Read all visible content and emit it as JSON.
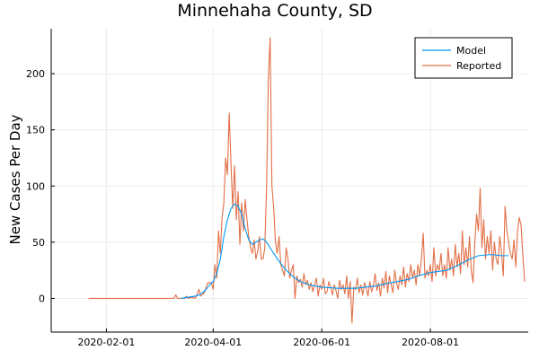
{
  "chart_data": {
    "type": "line",
    "title": "Minnehaha County, SD",
    "xlabel": "",
    "ylabel": "New Cases Per Day",
    "x_type": "date",
    "x_range": [
      "2020-01-01",
      "2020-09-25"
    ],
    "x_tick_labels": [
      "2020-02-01",
      "2020-04-01",
      "2020-06-01",
      "2020-08-01"
    ],
    "ylim": [
      -30,
      240
    ],
    "y_ticks": [
      0,
      50,
      100,
      150,
      200
    ],
    "grid": true,
    "legend_position": "top-right",
    "colors": {
      "Model": "#009AFA",
      "Reported": "#E26F46",
      "axis": "#000000",
      "grid": "#EBEBEB"
    },
    "series": [
      {
        "name": "Model",
        "points": [
          [
            "2020-03-14",
            0
          ],
          [
            "2020-03-18",
            1
          ],
          [
            "2020-03-22",
            2
          ],
          [
            "2020-03-24",
            3
          ],
          [
            "2020-03-26",
            5
          ],
          [
            "2020-03-28",
            8
          ],
          [
            "2020-03-30",
            12
          ],
          [
            "2020-04-01",
            15
          ],
          [
            "2020-04-03",
            22
          ],
          [
            "2020-04-05",
            35
          ],
          [
            "2020-04-07",
            55
          ],
          [
            "2020-04-09",
            70
          ],
          [
            "2020-04-11",
            80
          ],
          [
            "2020-04-13",
            84
          ],
          [
            "2020-04-15",
            82
          ],
          [
            "2020-04-17",
            75
          ],
          [
            "2020-04-19",
            62
          ],
          [
            "2020-04-21",
            52
          ],
          [
            "2020-04-23",
            48
          ],
          [
            "2020-04-25",
            50
          ],
          [
            "2020-04-27",
            52
          ],
          [
            "2020-04-29",
            53
          ],
          [
            "2020-05-01",
            50
          ],
          [
            "2020-05-03",
            45
          ],
          [
            "2020-05-05",
            40
          ],
          [
            "2020-05-08",
            33
          ],
          [
            "2020-05-11",
            27
          ],
          [
            "2020-05-14",
            22
          ],
          [
            "2020-05-17",
            18
          ],
          [
            "2020-05-20",
            15
          ],
          [
            "2020-05-25",
            12
          ],
          [
            "2020-06-01",
            10
          ],
          [
            "2020-06-10",
            9
          ],
          [
            "2020-06-20",
            9
          ],
          [
            "2020-07-01",
            11
          ],
          [
            "2020-07-10",
            14
          ],
          [
            "2020-07-20",
            17
          ],
          [
            "2020-07-25",
            20
          ],
          [
            "2020-08-01",
            23
          ],
          [
            "2020-08-10",
            25
          ],
          [
            "2020-08-16",
            29
          ],
          [
            "2020-08-22",
            34
          ],
          [
            "2020-08-28",
            38
          ],
          [
            "2020-09-04",
            39
          ],
          [
            "2020-09-10",
            38
          ],
          [
            "2020-09-14",
            38
          ]
        ]
      },
      {
        "name": "Reported",
        "points": [
          [
            "2020-01-22",
            0
          ],
          [
            "2020-03-10",
            0
          ],
          [
            "2020-03-11",
            3
          ],
          [
            "2020-03-12",
            0
          ],
          [
            "2020-03-16",
            0
          ],
          [
            "2020-03-17",
            2
          ],
          [
            "2020-03-18",
            0
          ],
          [
            "2020-03-20",
            1
          ],
          [
            "2020-03-22",
            0
          ],
          [
            "2020-03-24",
            8
          ],
          [
            "2020-03-25",
            2
          ],
          [
            "2020-03-27",
            5
          ],
          [
            "2020-03-29",
            14
          ],
          [
            "2020-03-31",
            14
          ],
          [
            "2020-04-01",
            8
          ],
          [
            "2020-04-02",
            30
          ],
          [
            "2020-04-03",
            18
          ],
          [
            "2020-04-04",
            60
          ],
          [
            "2020-04-05",
            40
          ],
          [
            "2020-04-06",
            72
          ],
          [
            "2020-04-07",
            85
          ],
          [
            "2020-04-08",
            125
          ],
          [
            "2020-04-09",
            110
          ],
          [
            "2020-04-10",
            165
          ],
          [
            "2020-04-11",
            120
          ],
          [
            "2020-04-12",
            80
          ],
          [
            "2020-04-13",
            118
          ],
          [
            "2020-04-14",
            70
          ],
          [
            "2020-04-15",
            95
          ],
          [
            "2020-04-16",
            48
          ],
          [
            "2020-04-17",
            85
          ],
          [
            "2020-04-18",
            60
          ],
          [
            "2020-04-19",
            88
          ],
          [
            "2020-04-20",
            70
          ],
          [
            "2020-04-21",
            55
          ],
          [
            "2020-04-22",
            45
          ],
          [
            "2020-04-23",
            40
          ],
          [
            "2020-04-24",
            52
          ],
          [
            "2020-04-25",
            35
          ],
          [
            "2020-04-26",
            42
          ],
          [
            "2020-04-27",
            55
          ],
          [
            "2020-04-28",
            35
          ],
          [
            "2020-04-29",
            35
          ],
          [
            "2020-04-30",
            45
          ],
          [
            "2020-05-01",
            100
          ],
          [
            "2020-05-02",
            195
          ],
          [
            "2020-05-03",
            232
          ],
          [
            "2020-05-04",
            100
          ],
          [
            "2020-05-05",
            80
          ],
          [
            "2020-05-06",
            50
          ],
          [
            "2020-05-07",
            40
          ],
          [
            "2020-05-08",
            55
          ],
          [
            "2020-05-09",
            30
          ],
          [
            "2020-05-10",
            25
          ],
          [
            "2020-05-11",
            20
          ],
          [
            "2020-05-12",
            45
          ],
          [
            "2020-05-13",
            35
          ],
          [
            "2020-05-14",
            18
          ],
          [
            "2020-05-15",
            25
          ],
          [
            "2020-05-16",
            30
          ],
          [
            "2020-05-17",
            0
          ],
          [
            "2020-05-18",
            20
          ],
          [
            "2020-05-19",
            14
          ],
          [
            "2020-05-20",
            17
          ],
          [
            "2020-05-21",
            10
          ],
          [
            "2020-05-22",
            22
          ],
          [
            "2020-05-23",
            12
          ],
          [
            "2020-05-24",
            16
          ],
          [
            "2020-05-25",
            8
          ],
          [
            "2020-05-26",
            14
          ],
          [
            "2020-05-27",
            6
          ],
          [
            "2020-05-28",
            12
          ],
          [
            "2020-05-29",
            18
          ],
          [
            "2020-05-30",
            2
          ],
          [
            "2020-05-31",
            12
          ],
          [
            "2020-06-01",
            8
          ],
          [
            "2020-06-02",
            18
          ],
          [
            "2020-06-03",
            4
          ],
          [
            "2020-06-04",
            6
          ],
          [
            "2020-06-05",
            15
          ],
          [
            "2020-06-06",
            10
          ],
          [
            "2020-06-07",
            3
          ],
          [
            "2020-06-08",
            12
          ],
          [
            "2020-06-09",
            7
          ],
          [
            "2020-06-10",
            0
          ],
          [
            "2020-06-11",
            16
          ],
          [
            "2020-06-12",
            8
          ],
          [
            "2020-06-13",
            12
          ],
          [
            "2020-06-14",
            4
          ],
          [
            "2020-06-15",
            20
          ],
          [
            "2020-06-16",
            0
          ],
          [
            "2020-06-17",
            15
          ],
          [
            "2020-06-18",
            -22
          ],
          [
            "2020-06-19",
            10
          ],
          [
            "2020-06-20",
            8
          ],
          [
            "2020-06-21",
            18
          ],
          [
            "2020-06-22",
            5
          ],
          [
            "2020-06-23",
            12
          ],
          [
            "2020-06-24",
            3
          ],
          [
            "2020-06-25",
            14
          ],
          [
            "2020-06-26",
            9
          ],
          [
            "2020-06-27",
            2
          ],
          [
            "2020-06-28",
            15
          ],
          [
            "2020-06-29",
            6
          ],
          [
            "2020-06-30",
            11
          ],
          [
            "2020-07-01",
            22
          ],
          [
            "2020-07-02",
            7
          ],
          [
            "2020-07-03",
            14
          ],
          [
            "2020-07-04",
            2
          ],
          [
            "2020-07-05",
            18
          ],
          [
            "2020-07-06",
            9
          ],
          [
            "2020-07-07",
            24
          ],
          [
            "2020-07-08",
            5
          ],
          [
            "2020-07-09",
            20
          ],
          [
            "2020-07-10",
            12
          ],
          [
            "2020-07-11",
            5
          ],
          [
            "2020-07-12",
            25
          ],
          [
            "2020-07-13",
            14
          ],
          [
            "2020-07-14",
            8
          ],
          [
            "2020-07-15",
            20
          ],
          [
            "2020-07-16",
            12
          ],
          [
            "2020-07-17",
            28
          ],
          [
            "2020-07-18",
            10
          ],
          [
            "2020-07-19",
            22
          ],
          [
            "2020-07-20",
            15
          ],
          [
            "2020-07-21",
            30
          ],
          [
            "2020-07-22",
            18
          ],
          [
            "2020-07-23",
            25
          ],
          [
            "2020-07-24",
            12
          ],
          [
            "2020-07-25",
            30
          ],
          [
            "2020-07-26",
            20
          ],
          [
            "2020-07-27",
            35
          ],
          [
            "2020-07-28",
            58
          ],
          [
            "2020-07-29",
            18
          ],
          [
            "2020-07-30",
            25
          ],
          [
            "2020-07-31",
            20
          ],
          [
            "2020-08-01",
            30
          ],
          [
            "2020-08-02",
            15
          ],
          [
            "2020-08-03",
            45
          ],
          [
            "2020-08-04",
            20
          ],
          [
            "2020-08-05",
            30
          ],
          [
            "2020-08-06",
            25
          ],
          [
            "2020-08-07",
            40
          ],
          [
            "2020-08-08",
            20
          ],
          [
            "2020-08-09",
            30
          ],
          [
            "2020-08-10",
            18
          ],
          [
            "2020-08-11",
            45
          ],
          [
            "2020-08-12",
            25
          ],
          [
            "2020-08-13",
            35
          ],
          [
            "2020-08-14",
            20
          ],
          [
            "2020-08-15",
            48
          ],
          [
            "2020-08-16",
            28
          ],
          [
            "2020-08-17",
            40
          ],
          [
            "2020-08-18",
            22
          ],
          [
            "2020-08-19",
            60
          ],
          [
            "2020-08-20",
            30
          ],
          [
            "2020-08-21",
            45
          ],
          [
            "2020-08-22",
            28
          ],
          [
            "2020-08-23",
            55
          ],
          [
            "2020-08-24",
            25
          ],
          [
            "2020-08-25",
            14
          ],
          [
            "2020-08-26",
            50
          ],
          [
            "2020-08-27",
            75
          ],
          [
            "2020-08-28",
            60
          ],
          [
            "2020-08-29",
            98
          ],
          [
            "2020-08-30",
            45
          ],
          [
            "2020-08-31",
            70
          ],
          [
            "2020-09-01",
            35
          ],
          [
            "2020-09-02",
            55
          ],
          [
            "2020-09-03",
            40
          ],
          [
            "2020-09-04",
            60
          ],
          [
            "2020-09-05",
            25
          ],
          [
            "2020-09-06",
            50
          ],
          [
            "2020-09-07",
            35
          ],
          [
            "2020-09-08",
            30
          ],
          [
            "2020-09-09",
            55
          ],
          [
            "2020-09-10",
            40
          ],
          [
            "2020-09-11",
            20
          ],
          [
            "2020-09-12",
            82
          ],
          [
            "2020-09-13",
            60
          ],
          [
            "2020-09-14",
            50
          ],
          [
            "2020-09-15",
            40
          ],
          [
            "2020-09-16",
            35
          ],
          [
            "2020-09-17",
            52
          ],
          [
            "2020-09-18",
            28
          ],
          [
            "2020-09-19",
            60
          ],
          [
            "2020-09-20",
            72
          ],
          [
            "2020-09-21",
            65
          ],
          [
            "2020-09-22",
            38
          ],
          [
            "2020-09-23",
            15
          ]
        ]
      }
    ]
  }
}
